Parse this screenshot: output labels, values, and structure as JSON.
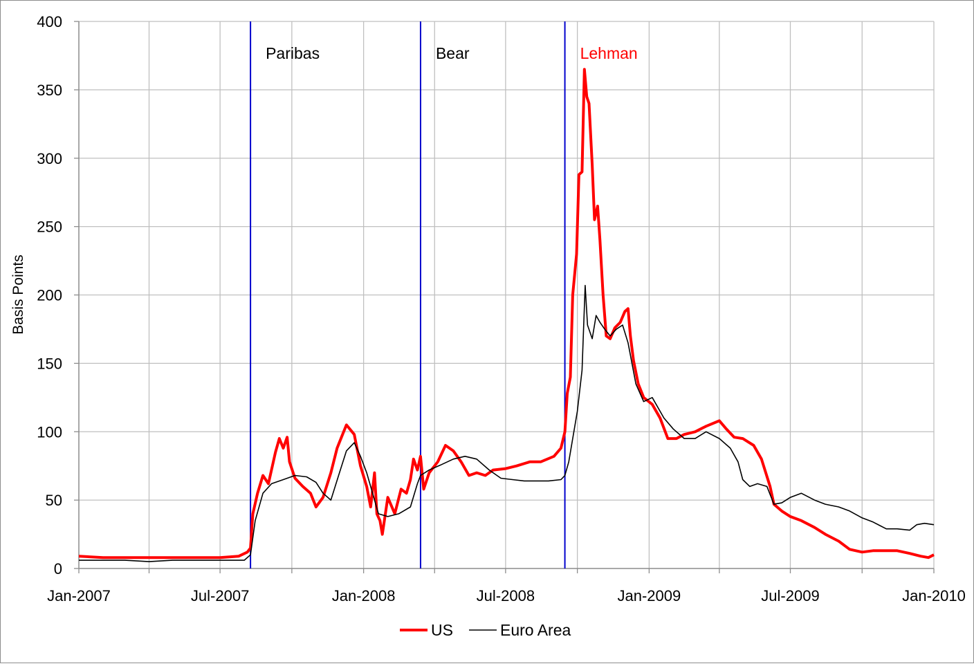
{
  "chart_data": {
    "type": "line",
    "title": "",
    "xlabel": "",
    "ylabel": "Basis Points",
    "ylim": [
      0,
      400
    ],
    "yticks": [
      0,
      50,
      100,
      150,
      200,
      250,
      300,
      350,
      400
    ],
    "xlim": [
      "2007-01-01",
      "2010-01-01"
    ],
    "xtick_labels": [
      "Jan-2007",
      "Jul-2007",
      "Jan-2008",
      "Jul-2008",
      "Jan-2009",
      "Jul-2009",
      "Jan-2010"
    ],
    "grid": true,
    "legend_position": "bottom",
    "colors": {
      "US": "#ff0000",
      "Euro Area": "#000000",
      "events": "#0000cc",
      "grid": "#bfbfbf"
    },
    "events": [
      {
        "label": "Paribas",
        "date": "2007-08-09",
        "label_color": "#000000"
      },
      {
        "label": "Bear",
        "date": "2008-03-14",
        "label_color": "#000000"
      },
      {
        "label": "Lehman",
        "date": "2008-09-15",
        "label_color": "#ff0000"
      }
    ],
    "series": [
      {
        "name": "US",
        "color": "#ff0000",
        "points": [
          [
            "2007-01-01",
            9
          ],
          [
            "2007-02-01",
            8
          ],
          [
            "2007-03-01",
            8
          ],
          [
            "2007-04-01",
            8
          ],
          [
            "2007-05-01",
            8
          ],
          [
            "2007-06-01",
            8
          ],
          [
            "2007-07-01",
            8
          ],
          [
            "2007-07-25",
            9
          ],
          [
            "2007-08-05",
            12
          ],
          [
            "2007-08-09",
            15
          ],
          [
            "2007-08-12",
            40
          ],
          [
            "2007-08-18",
            55
          ],
          [
            "2007-08-25",
            68
          ],
          [
            "2007-09-01",
            62
          ],
          [
            "2007-09-10",
            85
          ],
          [
            "2007-09-15",
            95
          ],
          [
            "2007-09-20",
            88
          ],
          [
            "2007-09-25",
            96
          ],
          [
            "2007-09-28",
            78
          ],
          [
            "2007-10-05",
            66
          ],
          [
            "2007-10-15",
            60
          ],
          [
            "2007-10-25",
            55
          ],
          [
            "2007-11-01",
            45
          ],
          [
            "2007-11-10",
            52
          ],
          [
            "2007-11-20",
            70
          ],
          [
            "2007-11-28",
            88
          ],
          [
            "2007-12-05",
            98
          ],
          [
            "2007-12-10",
            105
          ],
          [
            "2007-12-20",
            98
          ],
          [
            "2007-12-28",
            75
          ],
          [
            "2008-01-05",
            60
          ],
          [
            "2008-01-10",
            45
          ],
          [
            "2008-01-15",
            70
          ],
          [
            "2008-01-18",
            40
          ],
          [
            "2008-01-22",
            35
          ],
          [
            "2008-01-25",
            25
          ],
          [
            "2008-02-01",
            52
          ],
          [
            "2008-02-10",
            40
          ],
          [
            "2008-02-18",
            58
          ],
          [
            "2008-02-25",
            55
          ],
          [
            "2008-03-01",
            65
          ],
          [
            "2008-03-05",
            80
          ],
          [
            "2008-03-10",
            72
          ],
          [
            "2008-03-14",
            82
          ],
          [
            "2008-03-18",
            58
          ],
          [
            "2008-03-25",
            70
          ],
          [
            "2008-04-05",
            78
          ],
          [
            "2008-04-15",
            90
          ],
          [
            "2008-04-25",
            86
          ],
          [
            "2008-05-05",
            78
          ],
          [
            "2008-05-15",
            68
          ],
          [
            "2008-05-25",
            70
          ],
          [
            "2008-06-05",
            68
          ],
          [
            "2008-06-15",
            72
          ],
          [
            "2008-07-01",
            73
          ],
          [
            "2008-07-15",
            75
          ],
          [
            "2008-08-01",
            78
          ],
          [
            "2008-08-15",
            78
          ],
          [
            "2008-09-01",
            82
          ],
          [
            "2008-09-10",
            88
          ],
          [
            "2008-09-15",
            100
          ],
          [
            "2008-09-18",
            128
          ],
          [
            "2008-09-22",
            140
          ],
          [
            "2008-09-25",
            200
          ],
          [
            "2008-09-30",
            230
          ],
          [
            "2008-10-03",
            288
          ],
          [
            "2008-10-07",
            290
          ],
          [
            "2008-10-10",
            365
          ],
          [
            "2008-10-13",
            345
          ],
          [
            "2008-10-16",
            340
          ],
          [
            "2008-10-20",
            295
          ],
          [
            "2008-10-23",
            255
          ],
          [
            "2008-10-27",
            265
          ],
          [
            "2008-10-30",
            240
          ],
          [
            "2008-11-03",
            200
          ],
          [
            "2008-11-07",
            170
          ],
          [
            "2008-11-12",
            168
          ],
          [
            "2008-11-18",
            176
          ],
          [
            "2008-11-25",
            180
          ],
          [
            "2008-12-01",
            188
          ],
          [
            "2008-12-05",
            190
          ],
          [
            "2008-12-08",
            170
          ],
          [
            "2008-12-12",
            152
          ],
          [
            "2008-12-18",
            135
          ],
          [
            "2008-12-25",
            125
          ],
          [
            "2009-01-05",
            120
          ],
          [
            "2009-01-15",
            110
          ],
          [
            "2009-01-25",
            95
          ],
          [
            "2009-02-05",
            95
          ],
          [
            "2009-02-15",
            98
          ],
          [
            "2009-03-01",
            100
          ],
          [
            "2009-03-15",
            104
          ],
          [
            "2009-04-01",
            108
          ],
          [
            "2009-04-10",
            102
          ],
          [
            "2009-04-20",
            96
          ],
          [
            "2009-05-01",
            95
          ],
          [
            "2009-05-15",
            90
          ],
          [
            "2009-05-25",
            80
          ],
          [
            "2009-06-05",
            60
          ],
          [
            "2009-06-10",
            47
          ],
          [
            "2009-06-20",
            42
          ],
          [
            "2009-07-01",
            38
          ],
          [
            "2009-07-15",
            35
          ],
          [
            "2009-08-01",
            30
          ],
          [
            "2009-08-15",
            25
          ],
          [
            "2009-09-01",
            20
          ],
          [
            "2009-09-15",
            14
          ],
          [
            "2009-10-01",
            12
          ],
          [
            "2009-10-15",
            13
          ],
          [
            "2009-11-01",
            13
          ],
          [
            "2009-11-15",
            13
          ],
          [
            "2009-12-01",
            11
          ],
          [
            "2009-12-15",
            9
          ],
          [
            "2009-12-25",
            8
          ],
          [
            "2010-01-01",
            10
          ]
        ]
      },
      {
        "name": "Euro Area",
        "color": "#000000",
        "points": [
          [
            "2007-01-01",
            6
          ],
          [
            "2007-02-01",
            6
          ],
          [
            "2007-03-01",
            6
          ],
          [
            "2007-04-01",
            5
          ],
          [
            "2007-05-01",
            6
          ],
          [
            "2007-06-01",
            6
          ],
          [
            "2007-07-01",
            6
          ],
          [
            "2007-08-01",
            6
          ],
          [
            "2007-08-09",
            10
          ],
          [
            "2007-08-15",
            35
          ],
          [
            "2007-08-25",
            55
          ],
          [
            "2007-09-05",
            62
          ],
          [
            "2007-09-20",
            65
          ],
          [
            "2007-10-05",
            68
          ],
          [
            "2007-10-20",
            67
          ],
          [
            "2007-11-01",
            63
          ],
          [
            "2007-11-10",
            55
          ],
          [
            "2007-11-20",
            50
          ],
          [
            "2007-12-01",
            70
          ],
          [
            "2007-12-10",
            86
          ],
          [
            "2007-12-20",
            92
          ],
          [
            "2007-12-28",
            82
          ],
          [
            "2008-01-05",
            70
          ],
          [
            "2008-01-10",
            60
          ],
          [
            "2008-01-20",
            40
          ],
          [
            "2008-02-01",
            38
          ],
          [
            "2008-02-15",
            40
          ],
          [
            "2008-03-01",
            45
          ],
          [
            "2008-03-10",
            62
          ],
          [
            "2008-03-14",
            68
          ],
          [
            "2008-03-25",
            72
          ],
          [
            "2008-04-10",
            76
          ],
          [
            "2008-04-25",
            80
          ],
          [
            "2008-05-10",
            82
          ],
          [
            "2008-05-25",
            80
          ],
          [
            "2008-06-10",
            72
          ],
          [
            "2008-06-25",
            66
          ],
          [
            "2008-07-10",
            65
          ],
          [
            "2008-07-25",
            64
          ],
          [
            "2008-08-10",
            64
          ],
          [
            "2008-08-25",
            64
          ],
          [
            "2008-09-10",
            65
          ],
          [
            "2008-09-15",
            68
          ],
          [
            "2008-09-20",
            78
          ],
          [
            "2008-09-25",
            95
          ],
          [
            "2008-10-01",
            115
          ],
          [
            "2008-10-07",
            145
          ],
          [
            "2008-10-11",
            207
          ],
          [
            "2008-10-14",
            178
          ],
          [
            "2008-10-20",
            168
          ],
          [
            "2008-10-25",
            185
          ],
          [
            "2008-10-30",
            180
          ],
          [
            "2008-11-05",
            175
          ],
          [
            "2008-11-12",
            170
          ],
          [
            "2008-11-20",
            175
          ],
          [
            "2008-11-28",
            178
          ],
          [
            "2008-12-05",
            165
          ],
          [
            "2008-12-15",
            135
          ],
          [
            "2008-12-25",
            122
          ],
          [
            "2009-01-05",
            125
          ],
          [
            "2009-01-20",
            110
          ],
          [
            "2009-02-01",
            102
          ],
          [
            "2009-02-15",
            95
          ],
          [
            "2009-03-01",
            95
          ],
          [
            "2009-03-15",
            100
          ],
          [
            "2009-04-01",
            95
          ],
          [
            "2009-04-15",
            88
          ],
          [
            "2009-04-25",
            78
          ],
          [
            "2009-05-01",
            65
          ],
          [
            "2009-05-10",
            60
          ],
          [
            "2009-05-20",
            62
          ],
          [
            "2009-06-01",
            60
          ],
          [
            "2009-06-10",
            47
          ],
          [
            "2009-06-20",
            48
          ],
          [
            "2009-07-01",
            52
          ],
          [
            "2009-07-15",
            55
          ],
          [
            "2009-08-01",
            50
          ],
          [
            "2009-08-15",
            47
          ],
          [
            "2009-09-01",
            45
          ],
          [
            "2009-09-15",
            42
          ],
          [
            "2009-10-01",
            37
          ],
          [
            "2009-10-15",
            34
          ],
          [
            "2009-11-01",
            29
          ],
          [
            "2009-11-15",
            29
          ],
          [
            "2009-12-01",
            28
          ],
          [
            "2009-12-10",
            32
          ],
          [
            "2009-12-20",
            33
          ],
          [
            "2010-01-01",
            32
          ]
        ]
      }
    ]
  }
}
